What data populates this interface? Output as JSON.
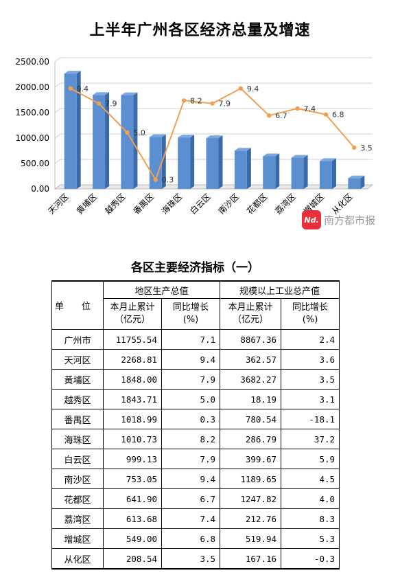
{
  "chart_data": {
    "type": "bar",
    "title": "上半年广州各区经济总量及增速",
    "categories": [
      "天河区",
      "黄埔区",
      "越秀区",
      "番禺区",
      "海珠区",
      "白云区",
      "南沙区",
      "花都区",
      "荔湾区",
      "增城区",
      "从化区"
    ],
    "series": [
      {
        "type": "bar",
        "values": [
          2268.81,
          1848.0,
          1843.71,
          1018.99,
          1010.73,
          999.13,
          753.05,
          641.9,
          613.68,
          549.0,
          208.54
        ],
        "color": "#5b8fd0"
      },
      {
        "type": "line",
        "values": [
          9.4,
          7.9,
          5.0,
          0.3,
          8.2,
          7.9,
          9.4,
          6.7,
          7.4,
          6.8,
          3.5
        ],
        "color": "#f0a050"
      }
    ],
    "y_ticks": [
      "0.00",
      "500.00",
      "1000.00",
      "1500.00",
      "2000.00",
      "2500.00"
    ],
    "ylim": [
      0,
      2500
    ],
    "grid": true
  },
  "watermark": {
    "logo": "Nd.",
    "text": "南方都市报"
  },
  "table": {
    "title": "各区主要经济指标（一）",
    "unit_label": "单　　位",
    "group_headers": [
      "地区生产总值",
      "规模以上工业总产值"
    ],
    "sub_headers": [
      "本月止累计\n（亿元）",
      "同比增长(%)",
      "本月止累计\n（亿元）",
      "同比增长(%)"
    ],
    "rows": [
      [
        "广州市",
        "11755.54",
        "7.1",
        "8867.36",
        "2.4"
      ],
      [
        "天河区",
        "2268.81",
        "9.4",
        "362.57",
        "3.6"
      ],
      [
        "黄埔区",
        "1848.00",
        "7.9",
        "3682.27",
        "3.5"
      ],
      [
        "越秀区",
        "1843.71",
        "5.0",
        "18.19",
        "3.1"
      ],
      [
        "番禺区",
        "1018.99",
        "0.3",
        "780.54",
        "-18.1"
      ],
      [
        "海珠区",
        "1010.73",
        "8.2",
        "286.79",
        "37.2"
      ],
      [
        "白云区",
        "999.13",
        "7.9",
        "399.67",
        "5.9"
      ],
      [
        "南沙区",
        "753.05",
        "9.4",
        "1189.65",
        "4.5"
      ],
      [
        "花都区",
        "641.90",
        "6.7",
        "1247.82",
        "4.0"
      ],
      [
        "荔湾区",
        "613.68",
        "7.4",
        "212.76",
        "8.3"
      ],
      [
        "增城区",
        "549.00",
        "6.8",
        "519.94",
        "5.3"
      ],
      [
        "从化区",
        "208.54",
        "3.5",
        "167.16",
        "-0.3"
      ]
    ]
  }
}
